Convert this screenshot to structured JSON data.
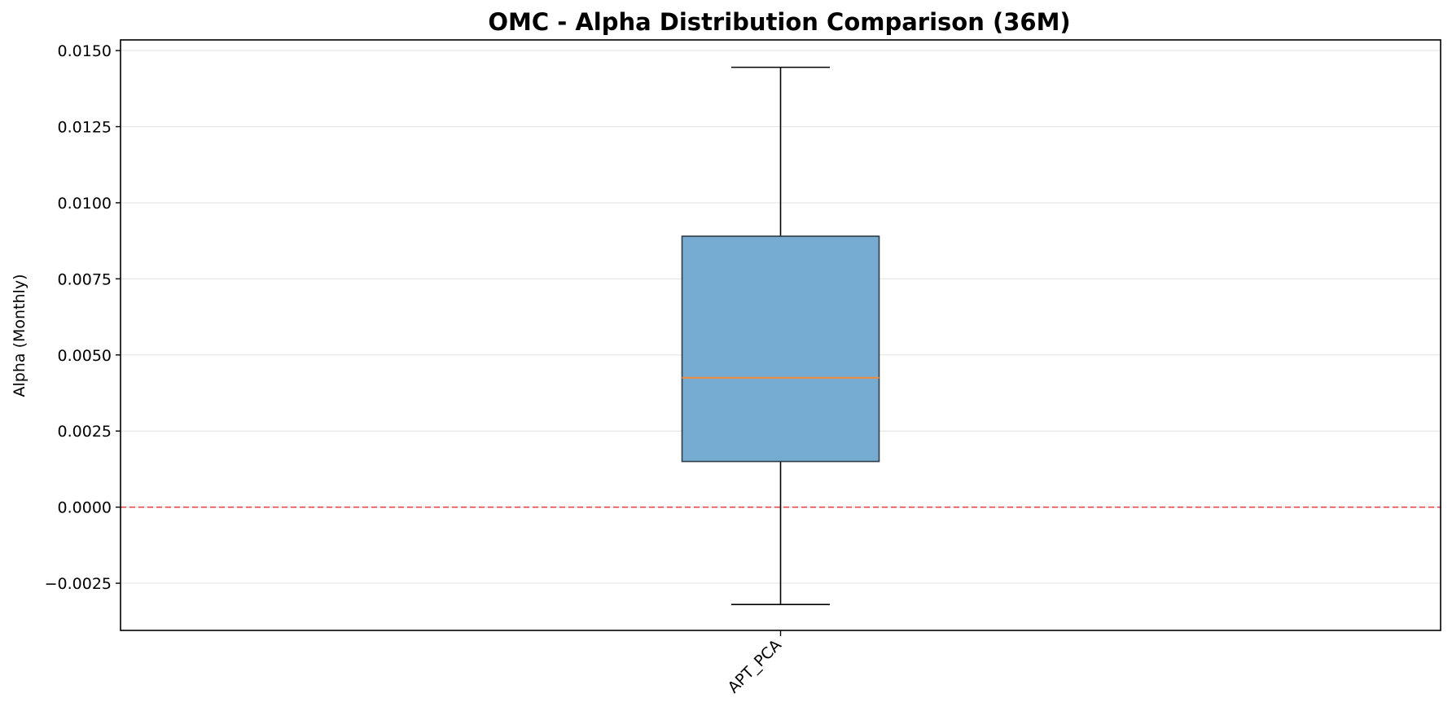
{
  "chart_data": {
    "type": "box",
    "title": "OMC - Alpha Distribution Comparison (36M)",
    "xlabel": "",
    "ylabel": "Alpha (Monthly)",
    "categories": [
      "APT_PCA"
    ],
    "boxes": [
      {
        "category": "APT_PCA",
        "whisker_low": -0.0032,
        "q1": 0.0015,
        "median": 0.00425,
        "q3": 0.0089,
        "whisker_high": 0.01445
      }
    ],
    "ylim": [
      -0.00405,
      0.01535
    ],
    "yticks": [
      -0.0025,
      0.0,
      0.0025,
      0.005,
      0.0075,
      0.01,
      0.0125,
      0.015
    ],
    "ytick_labels": [
      "−0.0025",
      "0.0000",
      "0.0025",
      "0.0050",
      "0.0075",
      "0.0100",
      "0.0125",
      "0.0150"
    ],
    "reference_line": {
      "y": 0.0,
      "style": "dashed",
      "color": "#e8474c"
    },
    "grid": {
      "y": true,
      "x": false
    },
    "colors": {
      "box_fill": "#77acd2",
      "box_edge": "#2f3b46",
      "median": "#ee8a3c",
      "grid": "#e6e6e6"
    }
  }
}
